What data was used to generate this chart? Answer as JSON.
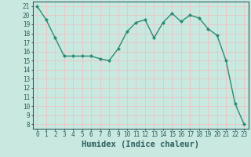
{
  "x": [
    0,
    1,
    2,
    3,
    4,
    5,
    6,
    7,
    8,
    9,
    10,
    11,
    12,
    13,
    14,
    15,
    16,
    17,
    18,
    19,
    20,
    21,
    22,
    23
  ],
  "y": [
    21,
    19.5,
    17.5,
    15.5,
    15.5,
    15.5,
    15.5,
    15.2,
    15.0,
    16.3,
    18.2,
    19.2,
    19.5,
    17.5,
    19.2,
    20.2,
    19.3,
    20.0,
    19.7,
    18.5,
    17.8,
    15.0,
    10.3,
    8.0
  ],
  "line_color": "#2d8b72",
  "marker": "D",
  "marker_size": 2.0,
  "bg_color": "#c8e8e0",
  "grid_color": "#e8c8c8",
  "xlabel": "Humidex (Indice chaleur)",
  "ylabel_ticks": [
    8,
    9,
    10,
    11,
    12,
    13,
    14,
    15,
    16,
    17,
    18,
    19,
    20,
    21
  ],
  "ylim": [
    7.5,
    21.5
  ],
  "xlim": [
    -0.5,
    23.5
  ],
  "font_color": "#2d6060",
  "tick_fontsize": 5.5,
  "label_fontsize": 7.5,
  "linewidth": 1.0
}
